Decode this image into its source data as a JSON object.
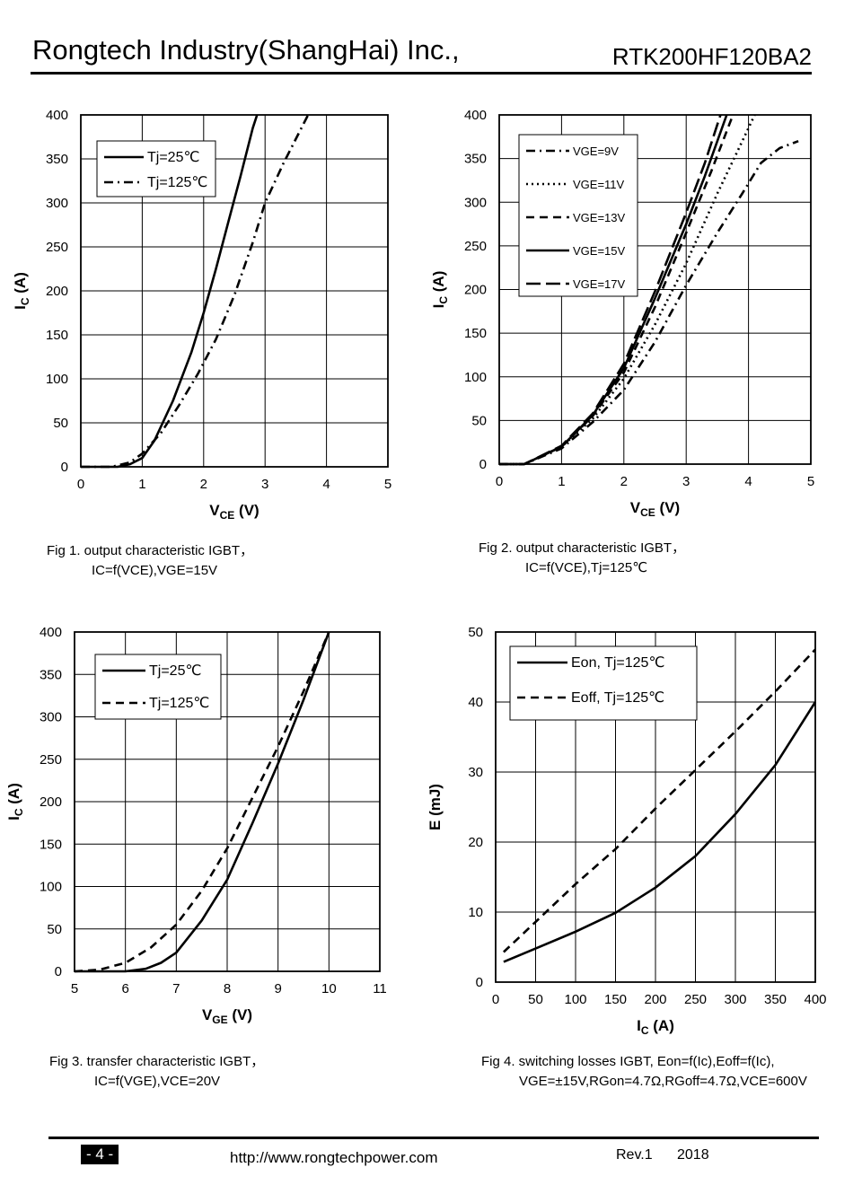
{
  "header": {
    "company": "Rongtech Industry(ShangHai) Inc.,",
    "part_number": "RTK200HF120BA2"
  },
  "captions": {
    "fig1": {
      "line1": "Fig 1. output characteristic IGBT，",
      "line2": "IC=f(VCE),VGE=15V"
    },
    "fig2": {
      "line1": "Fig 2. output characteristic IGBT，",
      "line2": "IC=f(VCE),Tj=125℃"
    },
    "fig3": {
      "line1": "Fig 3. transfer characteristic IGBT，",
      "line2": "IC=f(VGE),VCE=20V"
    },
    "fig4": {
      "line1": "Fig 4. switching losses IGBT, Eon=f(Ic),Eoff=f(Ic),",
      "line2": "VGE=±15V,RGon=4.7Ω,RGoff=4.7Ω,VCE=600V"
    }
  },
  "footer": {
    "page": "- 4 -",
    "url": "http://www.rongtechpower.com",
    "rev": "Rev.1",
    "year": "2018"
  },
  "chart_data": [
    {
      "id": "fig1",
      "type": "line",
      "xlabel": "VCE (V)",
      "ylabel": "IC (A)",
      "xlim": [
        0,
        5
      ],
      "ylim": [
        0,
        400
      ],
      "xticks": [
        "0",
        "1",
        "2",
        "3",
        "4",
        "5"
      ],
      "yticks": [
        "0",
        "50",
        "100",
        "150",
        "200",
        "250",
        "300",
        "350",
        "400"
      ],
      "grid": true,
      "legend_position": "top-left",
      "series": [
        {
          "name": "Tj=25℃",
          "style": "solid",
          "points": [
            [
              0,
              0
            ],
            [
              0.6,
              0
            ],
            [
              0.8,
              3
            ],
            [
              1.0,
              10
            ],
            [
              1.2,
              30
            ],
            [
              1.5,
              75
            ],
            [
              1.8,
              130
            ],
            [
              2.0,
              175
            ],
            [
              2.2,
              225
            ],
            [
              2.4,
              278
            ],
            [
              2.6,
              330
            ],
            [
              2.8,
              385
            ],
            [
              2.87,
              400
            ]
          ]
        },
        {
          "name": "Tj=125℃",
          "style": "dashdot",
          "points": [
            [
              0,
              0
            ],
            [
              0.5,
              0
            ],
            [
              0.8,
              5
            ],
            [
              1.0,
              15
            ],
            [
              1.3,
              38
            ],
            [
              1.6,
              70
            ],
            [
              1.9,
              105
            ],
            [
              2.2,
              145
            ],
            [
              2.5,
              195
            ],
            [
              2.8,
              255
            ],
            [
              3.0,
              300
            ],
            [
              3.3,
              345
            ],
            [
              3.7,
              400
            ]
          ]
        }
      ]
    },
    {
      "id": "fig2",
      "type": "line",
      "xlabel": "VCE (V)",
      "ylabel": "IC (A)",
      "xlim": [
        0,
        5
      ],
      "ylim": [
        0,
        400
      ],
      "xticks": [
        "0",
        "1",
        "2",
        "3",
        "4",
        "5"
      ],
      "yticks": [
        "0",
        "50",
        "100",
        "150",
        "200",
        "250",
        "300",
        "350",
        "400"
      ],
      "grid": true,
      "legend_position": "top-left",
      "series": [
        {
          "name": "VGE=9V",
          "style": "dashdot",
          "points": [
            [
              0,
              0
            ],
            [
              0.4,
              0
            ],
            [
              1.0,
              18
            ],
            [
              1.5,
              48
            ],
            [
              2.0,
              85
            ],
            [
              2.5,
              140
            ],
            [
              3.0,
              205
            ],
            [
              3.5,
              265
            ],
            [
              3.9,
              310
            ],
            [
              4.2,
              345
            ],
            [
              4.5,
              362
            ],
            [
              4.8,
              370
            ]
          ]
        },
        {
          "name": "VGE=11V",
          "style": "dot",
          "points": [
            [
              0,
              0
            ],
            [
              0.4,
              0
            ],
            [
              1.0,
              20
            ],
            [
              1.5,
              52
            ],
            [
              2.0,
              98
            ],
            [
              2.5,
              160
            ],
            [
              3.0,
              230
            ],
            [
              3.5,
              310
            ],
            [
              3.9,
              370
            ],
            [
              4.1,
              400
            ]
          ]
        },
        {
          "name": "VGE=13V",
          "style": "dash",
          "points": [
            [
              0,
              0
            ],
            [
              0.4,
              0
            ],
            [
              1.0,
              20
            ],
            [
              1.5,
              55
            ],
            [
              2.0,
              105
            ],
            [
              2.5,
              180
            ],
            [
              3.0,
              265
            ],
            [
              3.4,
              335
            ],
            [
              3.75,
              400
            ]
          ]
        },
        {
          "name": "VGE=15V",
          "style": "solid",
          "points": [
            [
              0,
              0
            ],
            [
              0.4,
              0
            ],
            [
              1.0,
              20
            ],
            [
              1.5,
              56
            ],
            [
              2.0,
              110
            ],
            [
              2.5,
              190
            ],
            [
              3.0,
              275
            ],
            [
              3.3,
              330
            ],
            [
              3.65,
              400
            ]
          ]
        },
        {
          "name": "VGE=17V",
          "style": "longdash",
          "points": [
            [
              0,
              0
            ],
            [
              0.4,
              0
            ],
            [
              1.0,
              21
            ],
            [
              1.5,
              58
            ],
            [
              2.0,
              115
            ],
            [
              2.5,
              198
            ],
            [
              3.0,
              288
            ],
            [
              3.3,
              345
            ],
            [
              3.55,
              400
            ]
          ]
        }
      ]
    },
    {
      "id": "fig3",
      "type": "line",
      "xlabel": "VGE (V)",
      "ylabel": "IC (A)",
      "xlim": [
        5,
        11
      ],
      "ylim": [
        0,
        400
      ],
      "xticks": [
        "5",
        "6",
        "7",
        "8",
        "9",
        "10",
        "11"
      ],
      "yticks": [
        "0",
        "50",
        "100",
        "150",
        "200",
        "250",
        "300",
        "350",
        "400"
      ],
      "grid": true,
      "legend_position": "top-left",
      "series": [
        {
          "name": "Tj=25℃",
          "style": "solid",
          "points": [
            [
              5,
              0
            ],
            [
              6,
              0
            ],
            [
              6.4,
              3
            ],
            [
              6.7,
              10
            ],
            [
              7.0,
              22
            ],
            [
              7.5,
              60
            ],
            [
              8.0,
              108
            ],
            [
              8.5,
              175
            ],
            [
              9.0,
              245
            ],
            [
              9.5,
              320
            ],
            [
              10.0,
              400
            ]
          ]
        },
        {
          "name": "Tj=125℃",
          "style": "dash",
          "points": [
            [
              5,
              0
            ],
            [
              5.5,
              2
            ],
            [
              6.0,
              10
            ],
            [
              6.5,
              28
            ],
            [
              7.0,
              55
            ],
            [
              7.5,
              95
            ],
            [
              8.0,
              145
            ],
            [
              8.5,
              205
            ],
            [
              9.0,
              265
            ],
            [
              9.5,
              330
            ],
            [
              10.0,
              400
            ]
          ]
        }
      ]
    },
    {
      "id": "fig4",
      "type": "line",
      "xlabel": "IC (A)",
      "ylabel": "E (mJ)",
      "xlim": [
        0,
        400
      ],
      "ylim": [
        0,
        50
      ],
      "xticks": [
        "0",
        "50",
        "100",
        "150",
        "200",
        "250",
        "300",
        "350",
        "400"
      ],
      "yticks": [
        "0",
        "10",
        "20",
        "30",
        "40",
        "50"
      ],
      "grid": true,
      "legend_position": "top-left",
      "series": [
        {
          "name": "Eon, Tj=125℃",
          "style": "solid",
          "points": [
            [
              10,
              2.9
            ],
            [
              50,
              4.8
            ],
            [
              100,
              7.2
            ],
            [
              150,
              9.9
            ],
            [
              200,
              13.5
            ],
            [
              250,
              18
            ],
            [
              300,
              24
            ],
            [
              350,
              31
            ],
            [
              400,
              40
            ]
          ]
        },
        {
          "name": "Eoff, Tj=125℃",
          "style": "dash",
          "points": [
            [
              10,
              4.3
            ],
            [
              50,
              8.6
            ],
            [
              100,
              14
            ],
            [
              150,
              19
            ],
            [
              200,
              24.8
            ],
            [
              250,
              30.3
            ],
            [
              300,
              35.8
            ],
            [
              350,
              41.5
            ],
            [
              400,
              47.5
            ]
          ]
        }
      ]
    }
  ]
}
